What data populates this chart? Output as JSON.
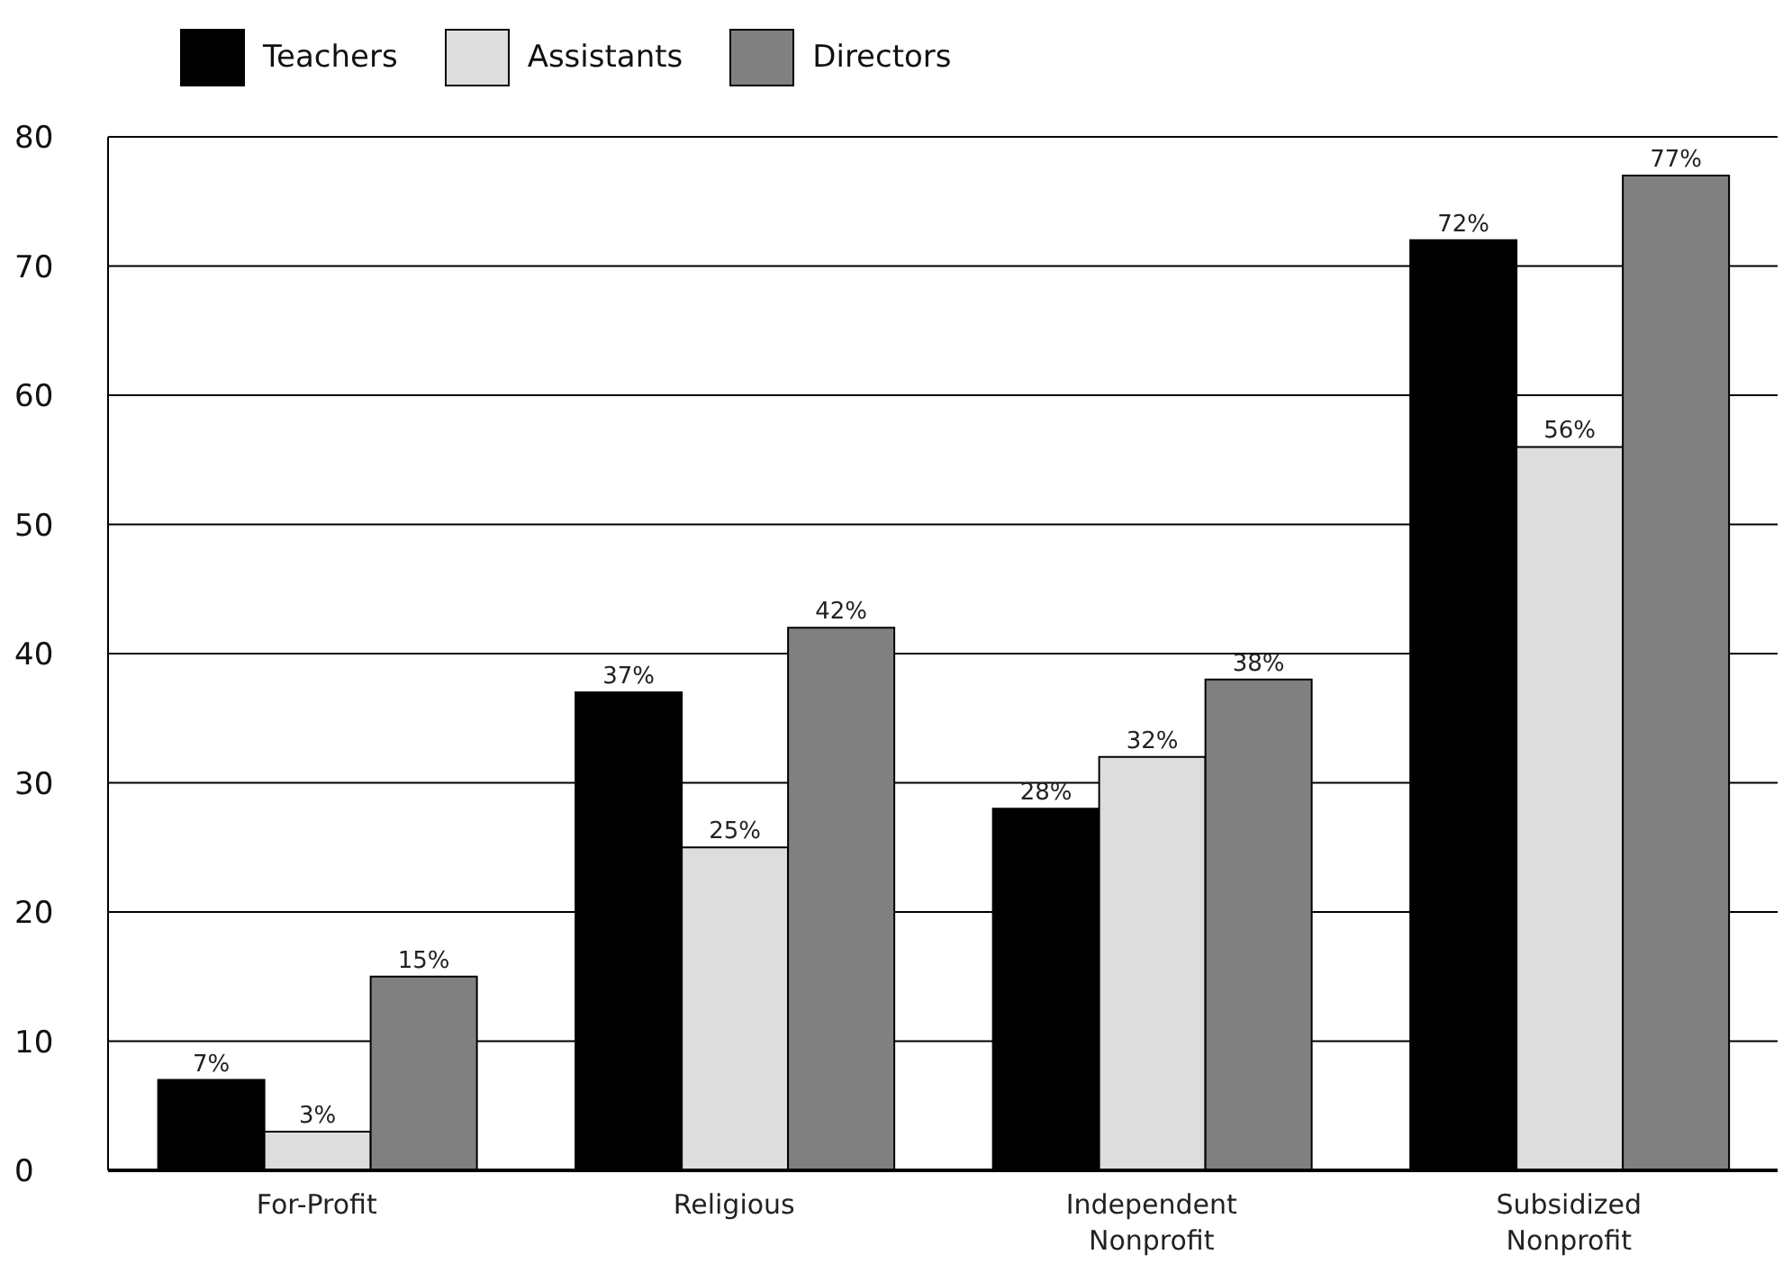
{
  "chart_data": {
    "type": "bar",
    "categories": [
      "For-Profit",
      "Religious",
      "Independent Nonprofit",
      "Subsidized Nonprofit"
    ],
    "series": [
      {
        "name": "Teachers",
        "color": "#000000",
        "values": [
          7,
          37,
          28,
          72
        ],
        "value_labels": [
          "7%",
          "37%",
          "28%",
          "72%"
        ]
      },
      {
        "name": "Assistants",
        "color": "#dddddd",
        "values": [
          3,
          25,
          32,
          56
        ],
        "value_labels": [
          "3%",
          "25%",
          "32%",
          "56%"
        ]
      },
      {
        "name": "Directors",
        "color": "#808080",
        "values": [
          15,
          42,
          38,
          77
        ],
        "value_labels": [
          "15%",
          "42%",
          "38%",
          "77%"
        ]
      }
    ],
    "ylim": [
      0,
      80
    ],
    "yticks": [
      0,
      10,
      20,
      30,
      40,
      50,
      60,
      70,
      80
    ],
    "grid": "y",
    "legend": "top left"
  }
}
